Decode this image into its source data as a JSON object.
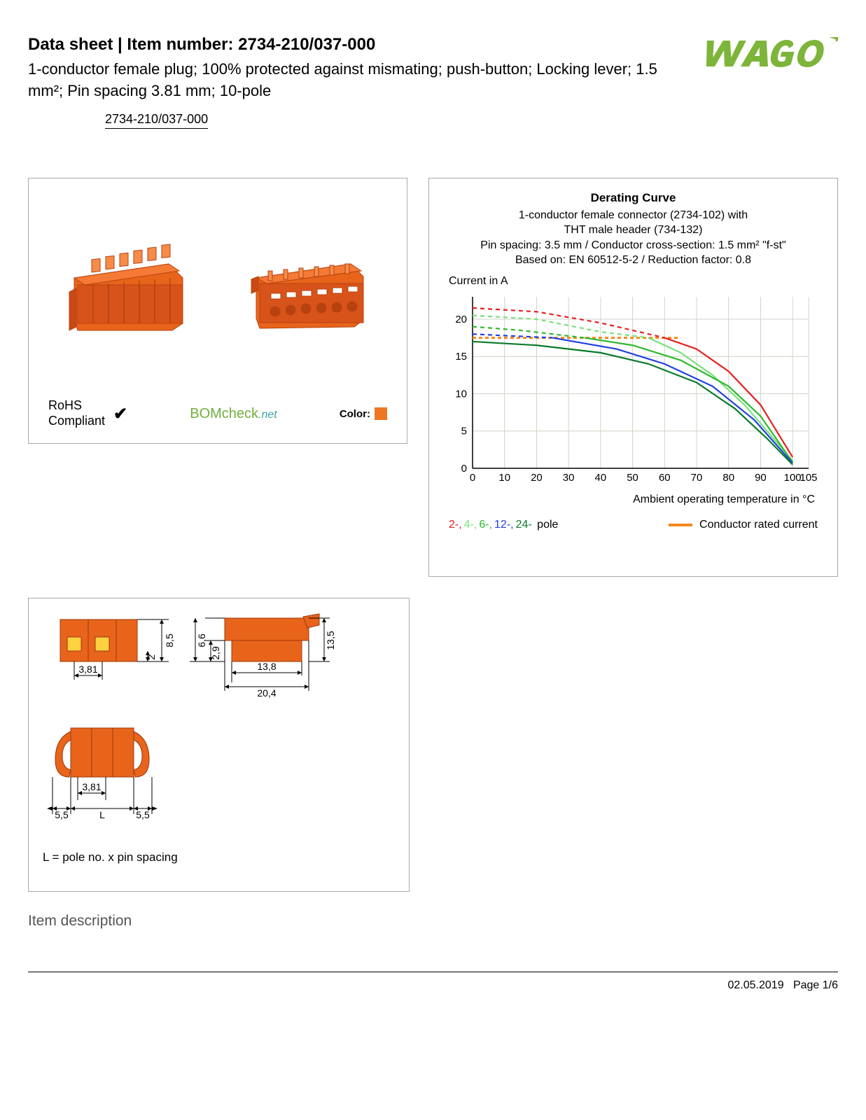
{
  "header": {
    "prefix": "Data sheet  |  Item number: ",
    "item_number": "2734-210/037-000",
    "description": "1-conductor female plug; 100% protected against mismating; push-button; Locking lever; 1.5 mm²; Pin spacing 3.81 mm; 10-pole",
    "item_link": "2734-210/037-000"
  },
  "logo": {
    "text": "WAGO",
    "fill": "#7db43a",
    "shadow": "#5a8a28"
  },
  "product_panel": {
    "connector_color": "#e8641b",
    "rohs_line1": "RoHS",
    "rohs_line2": "Compliant",
    "bomcheck_main": "BOMcheck",
    "bomcheck_suffix": ".net",
    "color_label": "Color:",
    "color_swatch": "#ee7622"
  },
  "chart": {
    "title": "Derating Curve",
    "sub1": "1-conductor female connector (2734-102) with",
    "sub2": "THT male header (734-132)",
    "sub3": "Pin spacing: 3.5 mm / Conductor cross-section: 1.5 mm² \"f-st\"",
    "sub4": "Based on: EN 60512-5-2 / Reduction factor: 0.8",
    "y_label": "Current in A",
    "x_label": "Ambient operating temperature in °C",
    "legend_poles_text": [
      "2-,",
      "4-,",
      "6-,",
      "12-,",
      "24-",
      " pole"
    ],
    "legend_pole_colors": [
      "#e62020",
      "#7be07b",
      "#2fb82f",
      "#2040e0",
      "#0a7a2a",
      "#000"
    ],
    "legend_rated": "Conductor rated current",
    "legend_rated_color": "#f28a1e",
    "x_ticks": [
      0,
      10,
      20,
      30,
      40,
      50,
      60,
      70,
      80,
      90,
      100,
      105
    ],
    "y_ticks": [
      0,
      5,
      10,
      15,
      20
    ],
    "ylim": [
      0,
      23
    ],
    "xlim": [
      0,
      105
    ],
    "grid_color": "#cfd4c8",
    "bg": "#ffffff",
    "rated_current": 17.5,
    "rated_dash": "5,4",
    "series": [
      {
        "color": "#e62020",
        "dash": "6,5",
        "pts": [
          [
            0,
            21.5
          ],
          [
            20,
            21
          ],
          [
            40,
            19.5
          ],
          [
            60,
            17.5
          ]
        ]
      },
      {
        "color": "#e62020",
        "dash": "",
        "pts": [
          [
            60,
            17.5
          ],
          [
            70,
            16
          ],
          [
            80,
            13
          ],
          [
            90,
            8.5
          ],
          [
            100,
            1.5
          ]
        ]
      },
      {
        "color": "#7be07b",
        "dash": "6,5",
        "pts": [
          [
            0,
            20.5
          ],
          [
            20,
            20
          ],
          [
            40,
            18.3
          ],
          [
            55,
            17.5
          ]
        ]
      },
      {
        "color": "#7be07b",
        "dash": "",
        "pts": [
          [
            55,
            17.5
          ],
          [
            65,
            15.5
          ],
          [
            75,
            12.5
          ],
          [
            85,
            8.5
          ],
          [
            95,
            3.5
          ],
          [
            100,
            1
          ]
        ]
      },
      {
        "color": "#2fb82f",
        "dash": "6,5",
        "pts": [
          [
            0,
            19
          ],
          [
            15,
            18.5
          ],
          [
            35,
            17.5
          ]
        ]
      },
      {
        "color": "#2fb82f",
        "dash": "",
        "pts": [
          [
            35,
            17.5
          ],
          [
            50,
            16.5
          ],
          [
            65,
            14.5
          ],
          [
            80,
            11
          ],
          [
            90,
            7
          ],
          [
            100,
            0.8
          ]
        ]
      },
      {
        "color": "#2040e0",
        "dash": "6,5",
        "pts": [
          [
            0,
            18
          ],
          [
            10,
            17.8
          ],
          [
            25,
            17.5
          ]
        ]
      },
      {
        "color": "#2040e0",
        "dash": "",
        "pts": [
          [
            25,
            17.5
          ],
          [
            45,
            16
          ],
          [
            60,
            14
          ],
          [
            75,
            11
          ],
          [
            88,
            6.5
          ],
          [
            100,
            0.7
          ]
        ]
      },
      {
        "color": "#0a7a2a",
        "dash": "",
        "pts": [
          [
            0,
            17
          ],
          [
            20,
            16.5
          ],
          [
            40,
            15.5
          ],
          [
            55,
            14
          ],
          [
            70,
            11.5
          ],
          [
            82,
            8
          ],
          [
            92,
            4
          ],
          [
            100,
            0.5
          ]
        ]
      }
    ]
  },
  "dim_panel": {
    "color": "#e8641b",
    "values": {
      "pin_spacing": "3,81",
      "h1": "8,5",
      "h2": "2",
      "h3": "6,6",
      "h4": "2,9",
      "w1": "13,8",
      "w2": "20,4",
      "h5": "13,5",
      "side": "5,5",
      "L": "L"
    },
    "note": "L = pole no. x pin spacing"
  },
  "section_title": "Item description",
  "footer": {
    "date": "02.05.2019",
    "page": "Page 1/6"
  }
}
